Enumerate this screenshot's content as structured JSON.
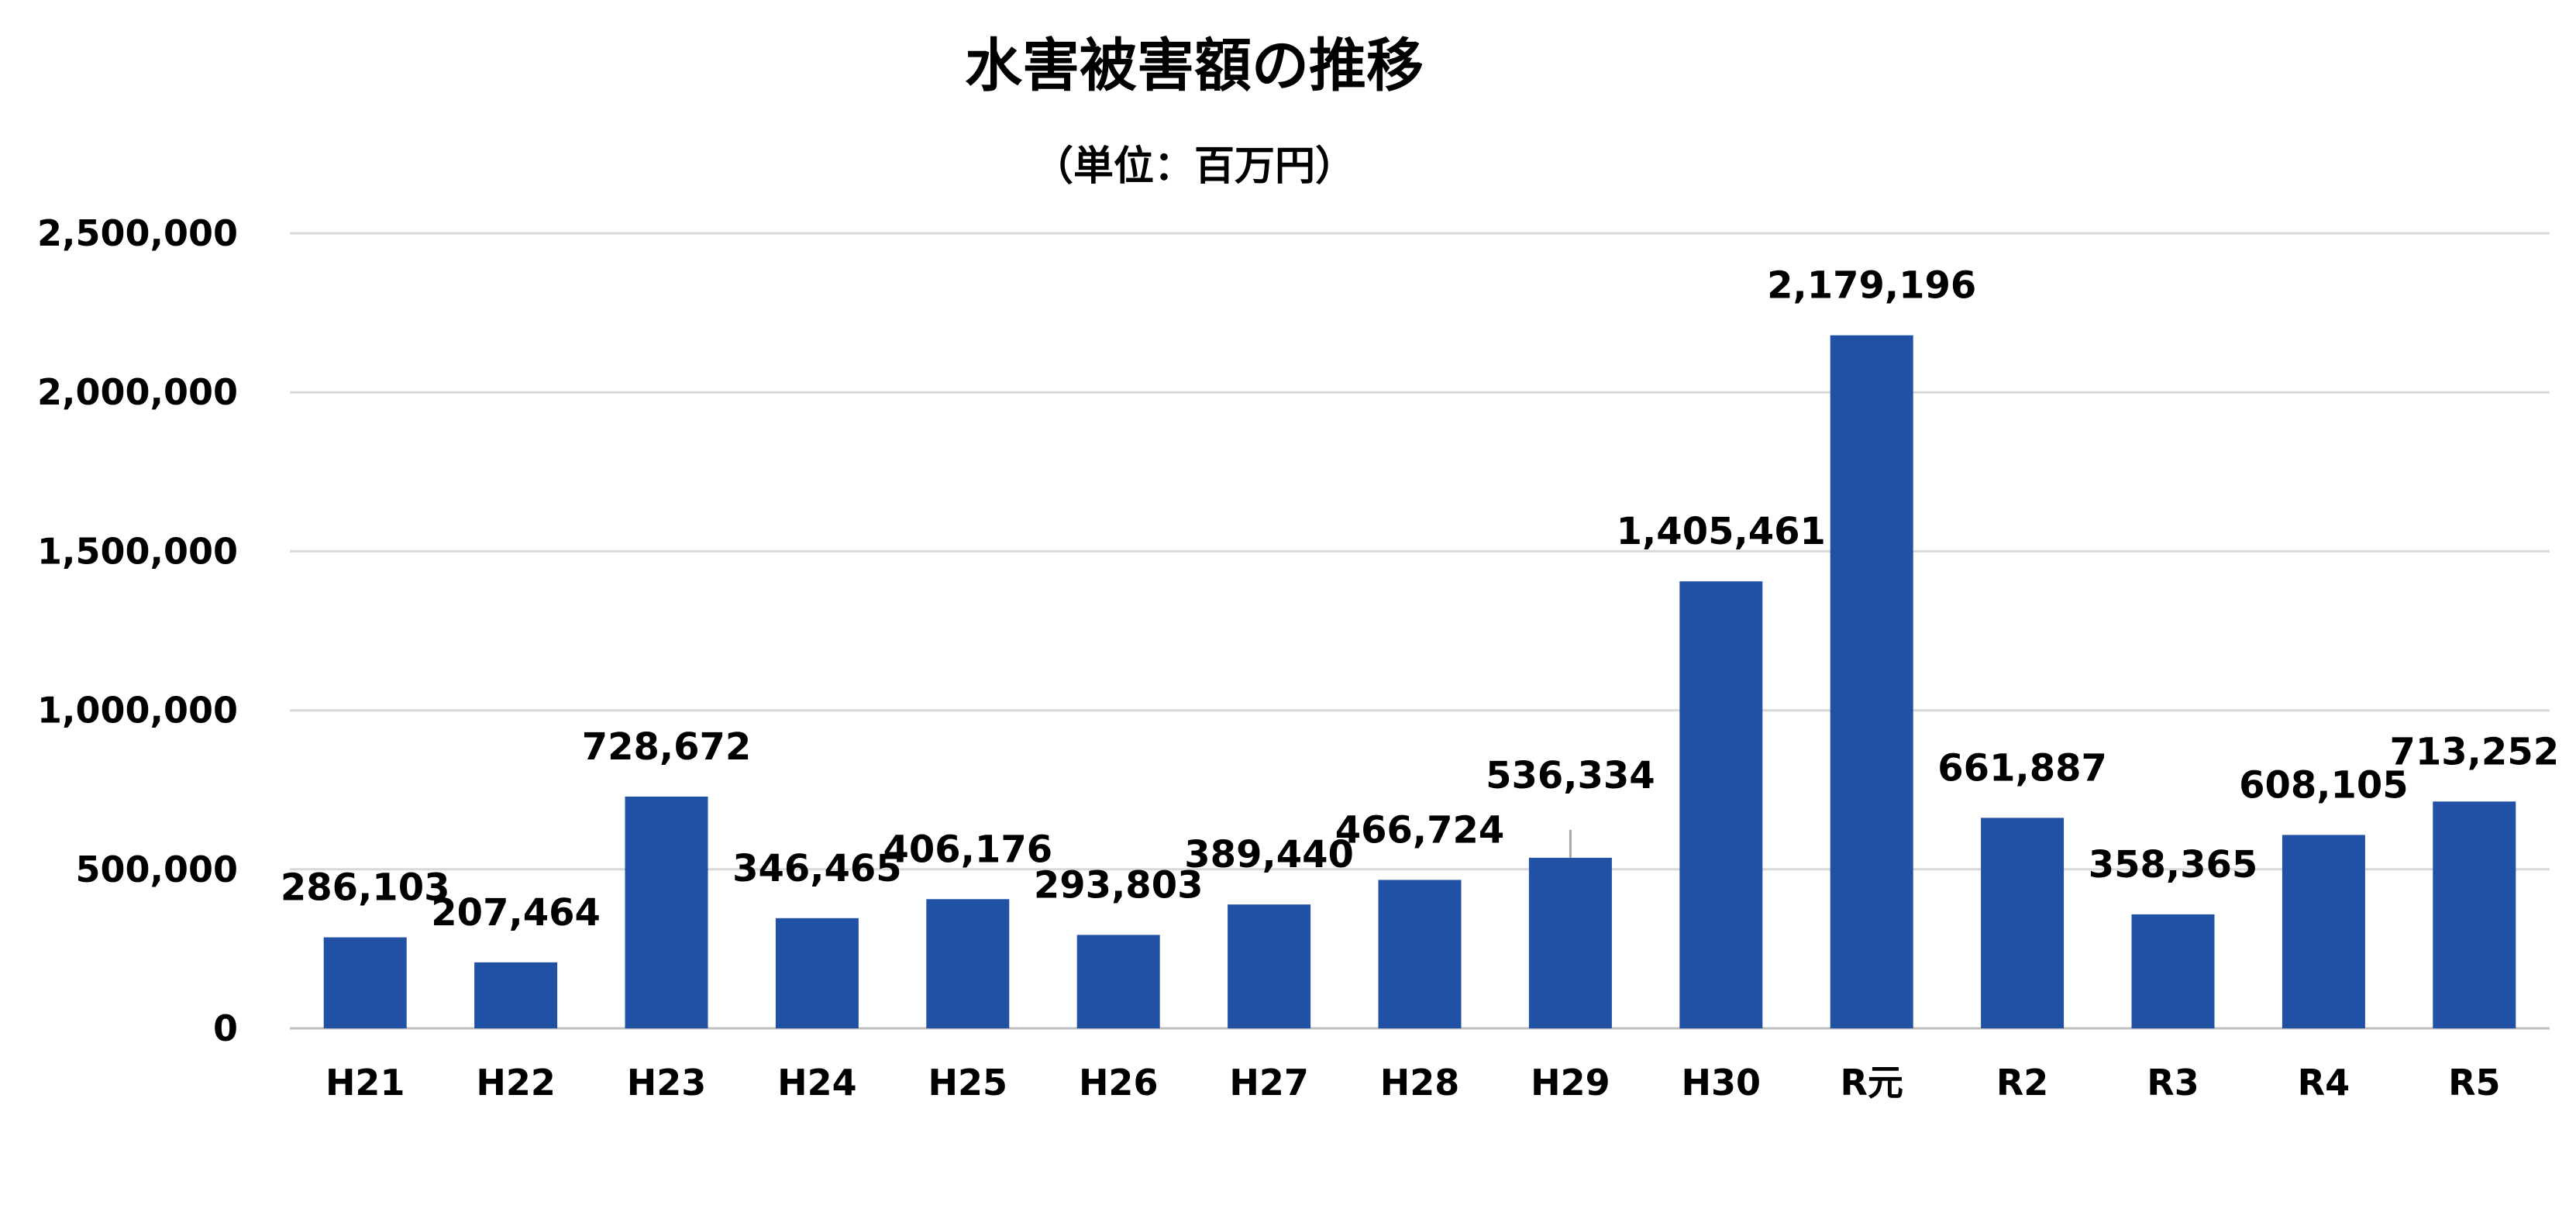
{
  "chart_data": {
    "type": "bar",
    "title": "水害被害額の推移",
    "subtitle": "（単位：百万円）",
    "xlabel": "",
    "ylabel": "",
    "categories": [
      "H21",
      "H22",
      "H23",
      "H24",
      "H25",
      "H26",
      "H27",
      "H28",
      "H29",
      "H30",
      "R元",
      "R2",
      "R3",
      "R4",
      "R5"
    ],
    "values": [
      286103,
      207464,
      728672,
      346465,
      406176,
      293803,
      389440,
      466724,
      536334,
      1405461,
      2179196,
      661887,
      358365,
      608105,
      713252
    ],
    "data_labels": [
      "286,103",
      "207,464",
      "728,672",
      "346,465",
      "406,176",
      "293,803",
      "389,440",
      "466,724",
      "536,334",
      "1,405,461",
      "2,179,196",
      "661,887",
      "358,365",
      "608,105",
      "713,252"
    ],
    "ylim": [
      0,
      2500000
    ],
    "yticks": [
      0,
      500000,
      1000000,
      1500000,
      2000000,
      2500000
    ],
    "ytick_labels": [
      "0",
      "500,000",
      "1,000,000",
      "1,500,000",
      "2,000,000",
      "2,500,000"
    ],
    "grid": true,
    "legend": "none",
    "colors": {
      "bar": "#2151A4",
      "grid": "#D9D9D9"
    }
  }
}
